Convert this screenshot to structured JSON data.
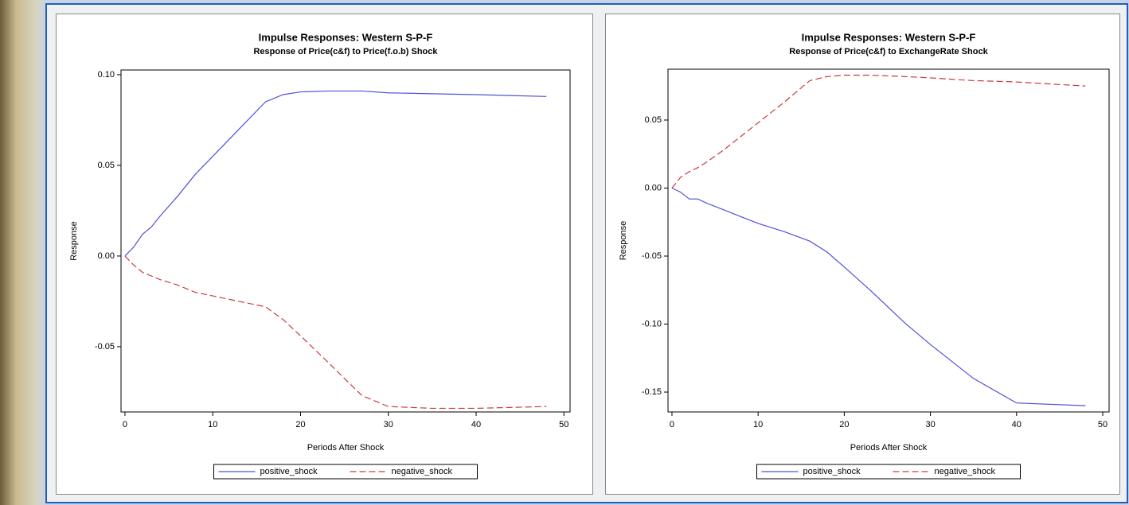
{
  "chart_data": [
    {
      "type": "line",
      "title": "Impulse Responses: Western S-P-F",
      "subtitle": "Response of Price(c&f) to Price(f.o.b) Shock",
      "x_label": "Periods After Shock",
      "y_label": "Response",
      "x": [
        0,
        1,
        2,
        3,
        4,
        6,
        8,
        10,
        13,
        16,
        18,
        20,
        23,
        27,
        30,
        35,
        40,
        48
      ],
      "series": [
        {
          "name": "positive_shock",
          "color": "#5050d8",
          "line_style": "solid",
          "values": [
            0,
            0.005,
            0.012,
            0.016,
            0.022,
            0.033,
            0.045,
            0.055,
            0.07,
            0.085,
            0.089,
            0.0905,
            0.091,
            0.091,
            0.09,
            0.0895,
            0.089,
            0.088
          ]
        },
        {
          "name": "negative_shock",
          "color": "#c83c3c",
          "line_style": "dashed",
          "values": [
            0,
            -0.005,
            -0.009,
            -0.011,
            -0.013,
            -0.016,
            -0.02,
            -0.022,
            -0.025,
            -0.028,
            -0.035,
            -0.044,
            -0.058,
            -0.077,
            -0.083,
            -0.084,
            -0.084,
            -0.083
          ]
        }
      ],
      "xlim": [
        -0.45,
        50.7
      ],
      "xticks": [
        0,
        10,
        20,
        30,
        40,
        50
      ],
      "ylim": [
        -0.086,
        0.1026
      ],
      "yticks": [
        {
          "value": 0.1,
          "label": "0.10"
        },
        0.05,
        {
          "value": 0,
          "label": "0.00"
        },
        -0.05
      ],
      "legend": "bottom"
    },
    {
      "type": "line",
      "title": "Impulse Responses: Western S-P-F",
      "subtitle": "Response of Price(c&f) to ExchangeRate Shock",
      "x_label": "Periods After Shock",
      "y_label": "Response",
      "x": [
        0,
        1,
        2,
        3,
        4,
        6,
        8,
        10,
        13,
        16,
        18,
        20,
        23,
        27,
        30,
        35,
        40,
        48
      ],
      "series": [
        {
          "name": "positive_shock",
          "color": "#5050d8",
          "line_style": "solid",
          "values": [
            0,
            -0.003,
            -0.008,
            -0.008,
            -0.011,
            -0.016,
            -0.021,
            -0.026,
            -0.032,
            -0.039,
            -0.047,
            -0.058,
            -0.075,
            -0.099,
            -0.115,
            -0.14,
            -0.158,
            -0.16
          ]
        },
        {
          "name": "negative_shock",
          "color": "#c83c3c",
          "line_style": "dashed",
          "values": [
            0,
            0.008,
            0.012,
            0.015,
            0.019,
            0.028,
            0.038,
            0.048,
            0.063,
            0.079,
            0.082,
            0.083,
            0.083,
            0.082,
            0.081,
            0.079,
            0.078,
            0.075
          ]
        }
      ],
      "xlim": [
        -0.46,
        50.74
      ],
      "xticks": [
        0,
        10,
        20,
        30,
        40,
        50
      ],
      "ylim": [
        -0.1646,
        0.0874
      ],
      "yticks": [
        0.05,
        {
          "value": 0,
          "label": "0.00"
        },
        -0.05,
        {
          "value": -0.1,
          "label": "-0.10"
        },
        -0.15
      ],
      "legend": "bottom"
    }
  ]
}
